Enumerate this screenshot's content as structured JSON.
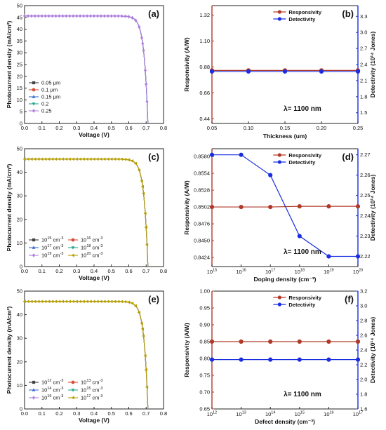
{
  "chart_data": [
    {
      "panel": "(a)",
      "type": "line",
      "xlabel": "Voltage (V)",
      "ylabel": "Photocurrent density (mA/cm²)",
      "xlim": [
        0.0,
        0.8
      ],
      "ylim": [
        0,
        50
      ],
      "xticks": [
        "0.0",
        "0.1",
        "0.2",
        "0.3",
        "0.4",
        "0.5",
        "0.6",
        "0.7",
        "0.8"
      ],
      "yticks": [
        "0",
        "5",
        "10",
        "15",
        "20",
        "25",
        "30",
        "35",
        "40",
        "45",
        "50"
      ],
      "jsc": 45.6,
      "voc": 0.71,
      "legend_position": "bottom-left",
      "series": [
        {
          "name": "0.05 µm",
          "color": "#404040",
          "marker": "square"
        },
        {
          "name": "0.1 µm",
          "color": "#d94c3a",
          "marker": "circle"
        },
        {
          "name": "0.15 µm",
          "color": "#3f6fd0",
          "marker": "triangle"
        },
        {
          "name": "0.2",
          "color": "#2aa88c",
          "marker": "triangle-down"
        },
        {
          "name": "0.25",
          "color": "#b07ee0",
          "marker": "diamond"
        }
      ]
    },
    {
      "panel": "(b)",
      "type": "line",
      "xlabel": "Thickness (um)",
      "ylabel": "Responsivity (A/W)",
      "y2label": "Detectivity (10¹⁴ Jones)",
      "xlim": [
        0.05,
        0.25
      ],
      "ylim": [
        0.4,
        1.4
      ],
      "y2lim": [
        1.3,
        3.5
      ],
      "xticks": [
        "0.05",
        "0.10",
        "0.15",
        "0.20",
        "0.25"
      ],
      "yticks": [
        "0.44",
        "0.66",
        "0.88",
        "1.10",
        "1.32"
      ],
      "y2ticks": [
        "1.5",
        "1.8",
        "2.1",
        "2.4",
        "2.7",
        "3.0",
        "3.3"
      ],
      "annotation": "λ= 1100 nm",
      "legend_position": "top-right",
      "x": [
        0.05,
        0.1,
        0.15,
        0.2,
        0.25
      ],
      "series": [
        {
          "name": "Responsivity",
          "axis": "left",
          "color": "#b03a2a",
          "values": [
            0.85,
            0.85,
            0.85,
            0.85,
            0.85
          ]
        },
        {
          "name": "Detectivity",
          "axis": "right",
          "color": "#1a2ee0",
          "values": [
            2.27,
            2.27,
            2.27,
            2.27,
            2.27
          ]
        }
      ]
    },
    {
      "panel": "(c)",
      "type": "line",
      "xlabel": "Voltage (V)",
      "ylabel": "Photocurrent density (mA/cm²)",
      "xlim": [
        0.0,
        0.8
      ],
      "ylim": [
        0,
        50
      ],
      "xticks": [
        "0.0",
        "0.1",
        "0.2",
        "0.3",
        "0.4",
        "0.5",
        "0.6",
        "0.7",
        "0.8"
      ],
      "yticks": [
        "0",
        "10",
        "20",
        "30",
        "40",
        "50"
      ],
      "jsc": 45.6,
      "voc": 0.71,
      "legend_position": "bottom-left",
      "series": [
        {
          "base": "10",
          "exp": "15",
          "unit": " cm",
          "unitexp": "-3",
          "color": "#404040",
          "marker": "square"
        },
        {
          "base": "10",
          "exp": "16",
          "unit": " cm",
          "unitexp": "-3",
          "color": "#d94c3a",
          "marker": "circle"
        },
        {
          "base": "10",
          "exp": "17",
          "unit": " cm",
          "unitexp": "-3",
          "color": "#3f6fd0",
          "marker": "triangle"
        },
        {
          "base": "10",
          "exp": "18",
          "unit": " cm",
          "unitexp": "-3",
          "color": "#2aa88c",
          "marker": "triangle-down"
        },
        {
          "base": "10",
          "exp": "19",
          "unit": " cm",
          "unitexp": "-3",
          "color": "#b07ee0",
          "marker": "diamond"
        },
        {
          "base": "10",
          "exp": "20",
          "unit": " cm",
          "unitexp": "-3",
          "color": "#b8a000",
          "marker": "triangle-left"
        }
      ]
    },
    {
      "panel": "(d)",
      "type": "line",
      "xlabel": "Doping density (cm⁻³)",
      "ylabel": "Responsivity (A/W)",
      "y2label": "Detectivity (10¹⁴ Jones)",
      "xscale": "log",
      "xlim": [
        15,
        20
      ],
      "ylim": [
        0.841,
        0.8592
      ],
      "y2lim": [
        2.215,
        2.273
      ],
      "xticks": [
        {
          "base": "10",
          "exp": "15"
        },
        {
          "base": "10",
          "exp": "16"
        },
        {
          "base": "10",
          "exp": "17"
        },
        {
          "base": "10",
          "exp": "18"
        },
        {
          "base": "10",
          "exp": "19"
        },
        {
          "base": "10",
          "exp": "20"
        }
      ],
      "yticks": [
        "0.8424",
        "0.8450",
        "0.8476",
        "0.8502",
        "0.8528",
        "0.8554",
        "0.8580"
      ],
      "y2ticks": [
        "2.22",
        "2.23",
        "2.24",
        "2.25",
        "2.26",
        "2.27"
      ],
      "annotation": "λ= 1100 nm",
      "legend_position": "top-right",
      "x": [
        15,
        16,
        17,
        18,
        19,
        20
      ],
      "series": [
        {
          "name": "Responsivity",
          "axis": "left",
          "color": "#b03a2a",
          "values": [
            0.8502,
            0.8502,
            0.8502,
            0.8503,
            0.8503,
            0.8503
          ]
        },
        {
          "name": "Detectivity",
          "axis": "right",
          "color": "#1a2ee0",
          "values": [
            2.27,
            2.27,
            2.26,
            2.23,
            2.22,
            2.22
          ]
        }
      ]
    },
    {
      "panel": "(e)",
      "type": "line",
      "xlabel": "Voltage (V)",
      "ylabel": "Photocurrent density (mA/cm²)",
      "xlim": [
        0.0,
        0.8
      ],
      "ylim": [
        0,
        50
      ],
      "xticks": [
        "0.0",
        "0.1",
        "0.2",
        "0.3",
        "0.4",
        "0.5",
        "0.6",
        "0.7",
        "0.8"
      ],
      "yticks": [
        "0",
        "10",
        "20",
        "30",
        "40",
        "50"
      ],
      "jsc": 45.6,
      "voc": 0.71,
      "legend_position": "bottom-left",
      "series": [
        {
          "base": "10",
          "exp": "12",
          "unit": " cm",
          "unitexp": "-3",
          "color": "#404040",
          "marker": "square"
        },
        {
          "base": "10",
          "exp": "13",
          "unit": " cm",
          "unitexp": "-3",
          "color": "#d94c3a",
          "marker": "circle"
        },
        {
          "base": "10",
          "exp": "14",
          "unit": " cm",
          "unitexp": "-3",
          "color": "#3f6fd0",
          "marker": "triangle"
        },
        {
          "base": "10",
          "exp": "15",
          "unit": " cm",
          "unitexp": "-3",
          "color": "#2aa88c",
          "marker": "triangle-down"
        },
        {
          "base": "10",
          "exp": "16",
          "unit": " cm",
          "unitexp": "-3",
          "color": "#b07ee0",
          "marker": "diamond"
        },
        {
          "base": "10",
          "exp": "17",
          "unit": " cm",
          "unitexp": "-3",
          "color": "#b8a000",
          "marker": "triangle-left"
        }
      ]
    },
    {
      "panel": "(f)",
      "type": "line",
      "xlabel": "Defect density (cm⁻³)",
      "ylabel": "Responsivity (A/W)",
      "y2label": "Detectivity (10¹⁴ Jones)",
      "xscale": "log",
      "xlim": [
        12,
        17
      ],
      "ylim": [
        0.65,
        1.0
      ],
      "y2lim": [
        1.6,
        3.2
      ],
      "xticks": [
        {
          "base": "10",
          "exp": "12"
        },
        {
          "base": "10",
          "exp": "13"
        },
        {
          "base": "10",
          "exp": "14"
        },
        {
          "base": "10",
          "exp": "15"
        },
        {
          "base": "10",
          "exp": "16"
        },
        {
          "base": "10",
          "exp": "17"
        }
      ],
      "yticks": [
        "0.65",
        "0.70",
        "0.75",
        "0.80",
        "0.85",
        "0.90",
        "0.95",
        "1.00"
      ],
      "y2ticks": [
        "1.6",
        "1.8",
        "2.0",
        "2.2",
        "2.4",
        "2.6",
        "2.8",
        "3.0",
        "3.2"
      ],
      "annotation": "λ= 1100 nm",
      "legend_position": "top-right",
      "x": [
        12,
        13,
        14,
        15,
        16,
        17
      ],
      "series": [
        {
          "name": "Responsivity",
          "axis": "left",
          "color": "#b03a2a",
          "values": [
            0.85,
            0.85,
            0.85,
            0.85,
            0.85,
            0.85
          ]
        },
        {
          "name": "Detectivity",
          "axis": "right",
          "color": "#1a2ee0",
          "values": [
            2.27,
            2.27,
            2.27,
            2.27,
            2.27,
            2.27
          ]
        }
      ]
    }
  ]
}
